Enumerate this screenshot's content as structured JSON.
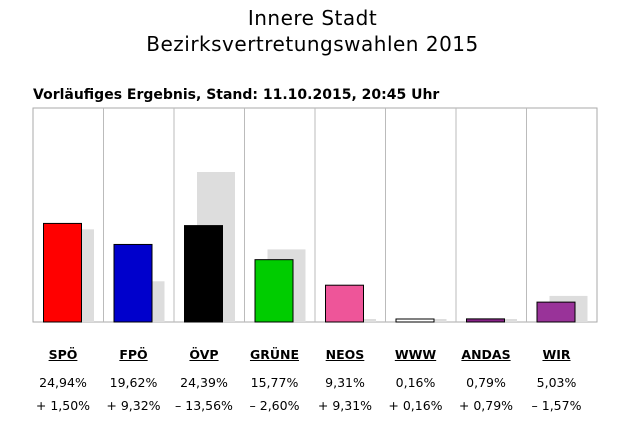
{
  "chart_data": {
    "type": "bar",
    "title": [
      "Innere Stadt",
      "Bezirksvertretungswahlen 2015"
    ],
    "subtitle": "Vorläufiges Ergebnis, Stand: 11.10.2015, 20:45 Uhr",
    "categories": [
      "SPÖ",
      "FPÖ",
      "ÖVP",
      "GRÜNE",
      "NEOS",
      "WWW",
      "ANDAS",
      "WIR"
    ],
    "series": [
      {
        "values": [
          24.94,
          19.62,
          24.39,
          15.77,
          9.31,
          0.16,
          0.79,
          5.03
        ],
        "labels": [
          "24,94%",
          "19,62%",
          "24,39%",
          "15,77%",
          "9,31%",
          "0,16%",
          "0,79%",
          "5,03%"
        ],
        "colors": [
          "#ff0000",
          "#0000cc",
          "#000000",
          "#00cc00",
          "#ee5599",
          "#ffffff",
          "#882288",
          "#993399"
        ]
      },
      {
        "values": [
          23.44,
          10.3,
          37.95,
          18.37,
          0.0,
          0.0,
          0.0,
          6.6
        ],
        "color": "#dddddd"
      }
    ],
    "changes": [
      "+ 1,50%",
      "+ 9,32%",
      "– 13,56%",
      "– 2,60%",
      "+ 9,31%",
      "+ 0,16%",
      "+ 0,79%",
      "– 1,57%"
    ],
    "ylim": [
      0,
      40
    ],
    "grid": false,
    "legend": "none"
  }
}
